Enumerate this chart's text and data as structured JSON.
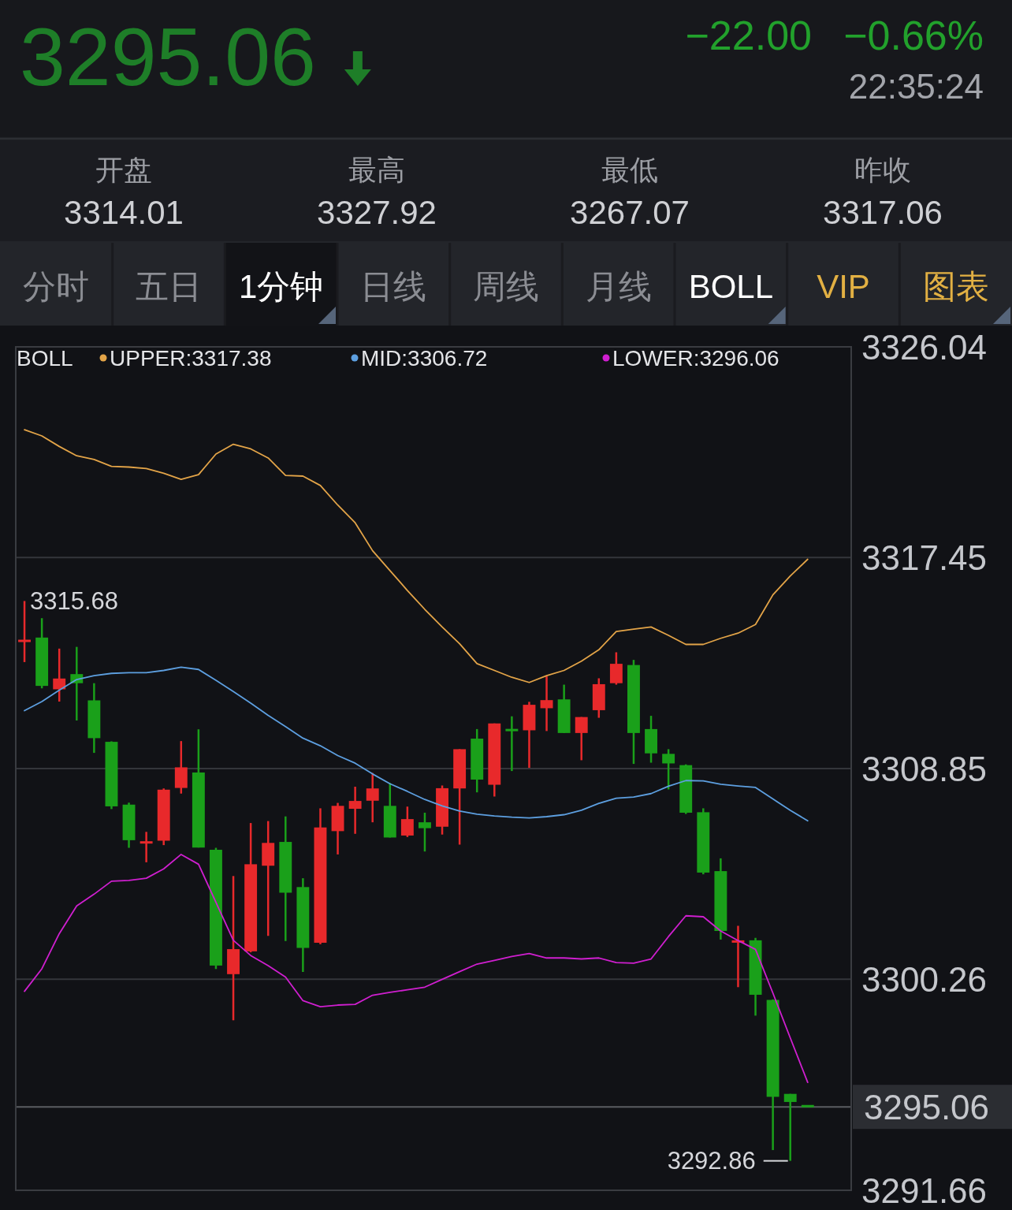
{
  "chart_data": {
    "type": "candlestick",
    "title": "3295.06",
    "annotations": [
      "−22.00",
      "−0.66%",
      "22:35:24",
      "开盘",
      "3314.01",
      "最高",
      "3327.92",
      "最低",
      "3267.07",
      "昨收",
      "3317.06",
      "分时",
      "五日",
      "1分钟",
      "日线",
      "周线",
      "月线",
      "BOLL",
      "VIP",
      "图表",
      "3315.68",
      "3292.86"
    ],
    "categories": [
      null,
      null,
      null,
      null,
      null,
      null,
      null,
      null,
      null,
      null,
      null,
      null,
      null,
      null,
      null,
      null,
      null,
      null,
      null,
      null,
      null,
      null,
      null,
      null,
      null,
      null,
      null,
      null,
      null,
      null,
      null,
      null,
      null,
      null,
      null,
      null,
      null,
      null,
      null,
      null,
      null,
      null,
      null,
      null,
      null,
      null
    ],
    "ohlc": [
      [
        3314.01,
        3315.68,
        3313.19,
        3314.1
      ],
      [
        3314.19,
        3314.98,
        3312.12,
        3312.22
      ],
      [
        3312.08,
        3313.74,
        3311.58,
        3312.52
      ],
      [
        3312.7,
        3313.81,
        3310.81,
        3312.33
      ],
      [
        3311.63,
        3312.33,
        3309.49,
        3310.09
      ],
      [
        3309.94,
        3309.96,
        3307.2,
        3307.31
      ],
      [
        3307.38,
        3307.46,
        3305.62,
        3305.93
      ],
      [
        3305.82,
        3306.27,
        3305.03,
        3305.86
      ],
      [
        3305.91,
        3308.04,
        3305.73,
        3307.99
      ],
      [
        3308.06,
        3309.97,
        3307.83,
        3308.9
      ],
      [
        3308.69,
        3310.45,
        3305.63,
        3305.63
      ],
      [
        3305.54,
        3305.62,
        3300.68,
        3300.82
      ],
      [
        3300.47,
        3304.47,
        3298.59,
        3301.49
      ],
      [
        3301.4,
        3306.63,
        3301.36,
        3304.95
      ],
      [
        3304.89,
        3306.71,
        3302.03,
        3305.82
      ],
      [
        3305.86,
        3306.9,
        3301.82,
        3303.79
      ],
      [
        3304.02,
        3304.38,
        3300.56,
        3301.54
      ],
      [
        3301.75,
        3307.23,
        3301.69,
        3306.45
      ],
      [
        3306.3,
        3307.45,
        3305.35,
        3307.33
      ],
      [
        3307.21,
        3308.11,
        3306.19,
        3307.53
      ],
      [
        3307.54,
        3308.67,
        3306.66,
        3308.04
      ],
      [
        3307.33,
        3308.26,
        3306.04,
        3306.04
      ],
      [
        3306.12,
        3307.3,
        3306.06,
        3306.79
      ],
      [
        3306.66,
        3307.05,
        3305.47,
        3306.42
      ],
      [
        3306.48,
        3308.16,
        3306.16,
        3308.05
      ],
      [
        3308.04,
        3309.64,
        3305.75,
        3309.64
      ],
      [
        3310.07,
        3310.46,
        3307.88,
        3308.4
      ],
      [
        3308.19,
        3310.69,
        3307.71,
        3310.69
      ],
      [
        3310.44,
        3310.98,
        3308.75,
        3310.4
      ],
      [
        3310.41,
        3311.57,
        3308.88,
        3311.45
      ],
      [
        3311.31,
        3312.61,
        3310.38,
        3311.64
      ],
      [
        3311.67,
        3312.27,
        3310.3,
        3310.3
      ],
      [
        3310.3,
        3310.95,
        3309.19,
        3310.95
      ],
      [
        3311.23,
        3312.53,
        3310.92,
        3312.29
      ],
      [
        3312.33,
        3313.59,
        3312.27,
        3313.12
      ],
      [
        3313.07,
        3313.28,
        3309.04,
        3310.3
      ],
      [
        3310.46,
        3311.0,
        3309.09,
        3309.47
      ],
      [
        3309.45,
        3309.64,
        3308.0,
        3309.06
      ],
      [
        3308.99,
        3309.02,
        3307.0,
        3307.05
      ],
      [
        3307.07,
        3307.23,
        3304.54,
        3304.61
      ],
      [
        3304.67,
        3305.19,
        3301.88,
        3302.23
      ],
      [
        3301.78,
        3302.44,
        3299.94,
        3301.82
      ],
      [
        3301.85,
        3301.95,
        3298.78,
        3299.63
      ],
      [
        3299.42,
        3299.44,
        3293.3,
        3295.47
      ],
      [
        3295.59,
        3295.59,
        3292.86,
        3295.26
      ],
      [
        3295.12,
        3295.12,
        3295.06,
        3295.06
      ]
    ],
    "colors": [
      "#e8292b",
      "#1aa01a",
      "#e8292b",
      "#1aa01a",
      "#1aa01a",
      "#1aa01a",
      "#1aa01a",
      "#e8292b",
      "#e8292b",
      "#e8292b",
      "#1aa01a",
      "#1aa01a",
      "#e8292b",
      "#e8292b",
      "#e8292b",
      "#1aa01a",
      "#1aa01a",
      "#e8292b",
      "#e8292b",
      "#e8292b",
      "#e8292b",
      "#1aa01a",
      "#e8292b",
      "#1aa01a",
      "#e8292b",
      "#e8292b",
      "#1aa01a",
      "#e8292b",
      "#1aa01a",
      "#e8292b",
      "#e8292b",
      "#1aa01a",
      "#e8292b",
      "#e8292b",
      "#e8292b",
      "#1aa01a",
      "#1aa01a",
      "#1aa01a",
      "#1aa01a",
      "#1aa01a",
      "#1aa01a",
      "#e8292b",
      "#1aa01a",
      "#1aa01a",
      "#1aa01a",
      "#1aa01a"
    ],
    "series": [
      {
        "name": "UPPER:3317.38",
        "type": "line",
        "color": "#e3a448",
        "values": [
          3322.66,
          3322.41,
          3321.98,
          3321.6,
          3321.45,
          3321.17,
          3321.14,
          3321.08,
          3320.89,
          3320.64,
          3320.83,
          3321.67,
          3322.07,
          3321.88,
          3321.51,
          3320.8,
          3320.77,
          3320.39,
          3319.59,
          3318.87,
          3317.73,
          3316.92,
          3316.11,
          3315.34,
          3314.62,
          3313.94,
          3313.13,
          3312.85,
          3312.57,
          3312.36,
          3312.64,
          3312.85,
          3313.23,
          3313.69,
          3314.44,
          3314.53,
          3314.62,
          3314.28,
          3313.91,
          3313.91,
          3314.16,
          3314.37,
          3314.72,
          3315.93,
          3316.7,
          3317.38
        ]
      },
      {
        "name": "MID:3306.72",
        "type": "line",
        "color": "#5d9fe0",
        "values": [
          3311.21,
          3311.58,
          3312.05,
          3312.48,
          3312.64,
          3312.73,
          3312.76,
          3312.76,
          3312.85,
          3312.98,
          3312.89,
          3312.45,
          3311.99,
          3311.52,
          3311.02,
          3310.56,
          3310.09,
          3309.78,
          3309.38,
          3309.07,
          3308.63,
          3308.23,
          3307.92,
          3307.59,
          3307.33,
          3307.12,
          3306.99,
          3306.92,
          3306.87,
          3306.84,
          3306.89,
          3306.97,
          3307.15,
          3307.43,
          3307.64,
          3307.69,
          3307.83,
          3308.13,
          3308.36,
          3308.35,
          3308.21,
          3308.14,
          3308.08,
          3307.61,
          3307.15,
          3306.72
        ]
      },
      {
        "name": "LOWER:3296.06",
        "type": "line",
        "color": "#d01fd0",
        "values": [
          3299.77,
          3300.69,
          3302.12,
          3303.25,
          3303.73,
          3304.26,
          3304.29,
          3304.38,
          3304.76,
          3305.35,
          3304.95,
          3303.4,
          3301.85,
          3301.23,
          3300.82,
          3300.35,
          3299.39,
          3299.14,
          3299.21,
          3299.24,
          3299.61,
          3299.73,
          3299.83,
          3299.94,
          3300.26,
          3300.57,
          3300.88,
          3301.03,
          3301.19,
          3301.31,
          3301.13,
          3301.13,
          3301.09,
          3301.13,
          3300.94,
          3300.92,
          3301.09,
          3302.0,
          3302.85,
          3302.81,
          3302.23,
          3301.84,
          3301.48,
          3299.7,
          3297.87,
          3296.06
        ]
      }
    ],
    "ylim": [
      3291.66,
      3326.04
    ],
    "yticks": [
      3326.04,
      3317.45,
      3308.85,
      3300.26,
      3291.66
    ],
    "tick_labels": "y",
    "grid": "y",
    "legend": "top",
    "legend_title": "BOLL",
    "ref_lines": [
      {
        "axis": "y",
        "value": 3295.06,
        "label": "3295.06"
      }
    ]
  }
}
